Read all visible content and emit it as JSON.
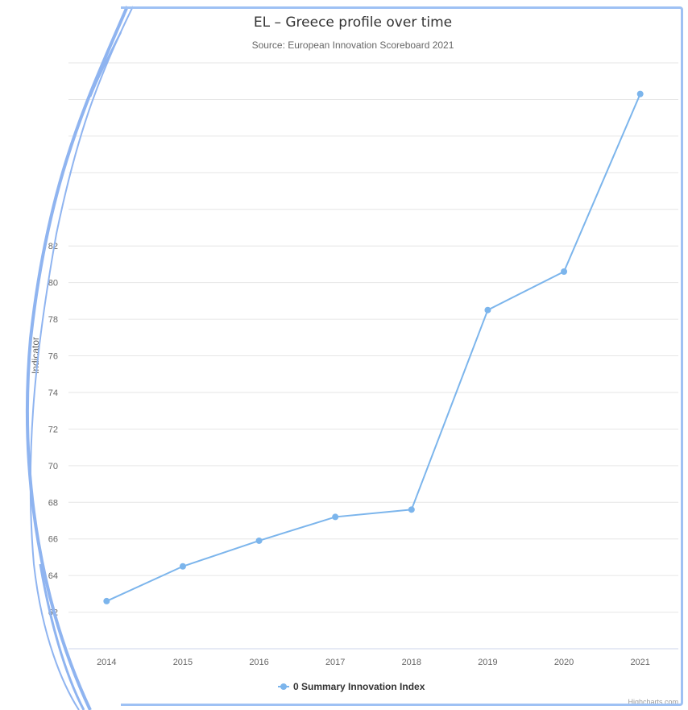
{
  "chart_data": {
    "type": "line",
    "title": "EL – Greece profile over time",
    "subtitle": "Source: European Innovation Scoreboard 2021",
    "ylabel": "Indicator",
    "xlabel": "",
    "categories": [
      "2014",
      "2015",
      "2016",
      "2017",
      "2018",
      "2019",
      "2020",
      "2021"
    ],
    "series": [
      {
        "name": "0 Summary Innovation Index",
        "values": [
          62.6,
          64.5,
          65.9,
          67.2,
          67.6,
          78.5,
          80.6,
          90.3
        ],
        "color": "#7cb5ec"
      }
    ],
    "yticks": [
      62,
      64,
      66,
      68,
      70,
      72,
      74,
      76,
      78,
      80,
      82
    ],
    "ylim": [
      60,
      92
    ],
    "grid": true,
    "legend_position": "bottom-center"
  },
  "credits": "Highcharts.com",
  "decoration_color": "#8fb4f0"
}
